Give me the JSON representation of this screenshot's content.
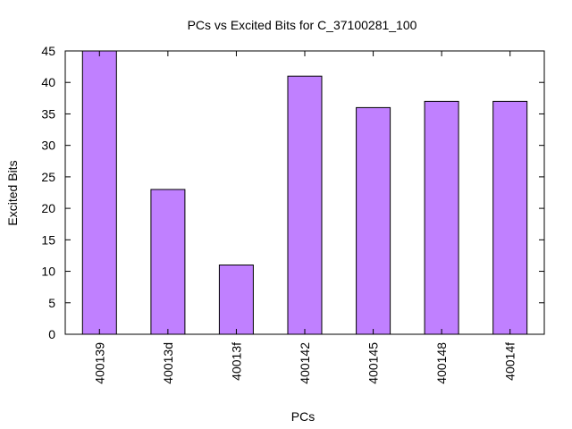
{
  "chart_data": {
    "type": "bar",
    "title": "PCs vs Excited Bits for C_37100281_100",
    "xlabel": "PCs",
    "ylabel": "Excited Bits",
    "categories": [
      "400139",
      "40013d",
      "40013f",
      "400142",
      "400145",
      "400148",
      "40014f"
    ],
    "values": [
      45,
      23,
      11,
      41,
      36,
      37,
      37
    ],
    "ylim": [
      0,
      45
    ],
    "yticks": [
      0,
      5,
      10,
      15,
      20,
      25,
      30,
      35,
      40,
      45
    ],
    "grid": false,
    "legend": "none",
    "colors": {
      "bar_fill": "#c080ff",
      "bar_stroke": "#000000",
      "axis": "#000000"
    }
  }
}
